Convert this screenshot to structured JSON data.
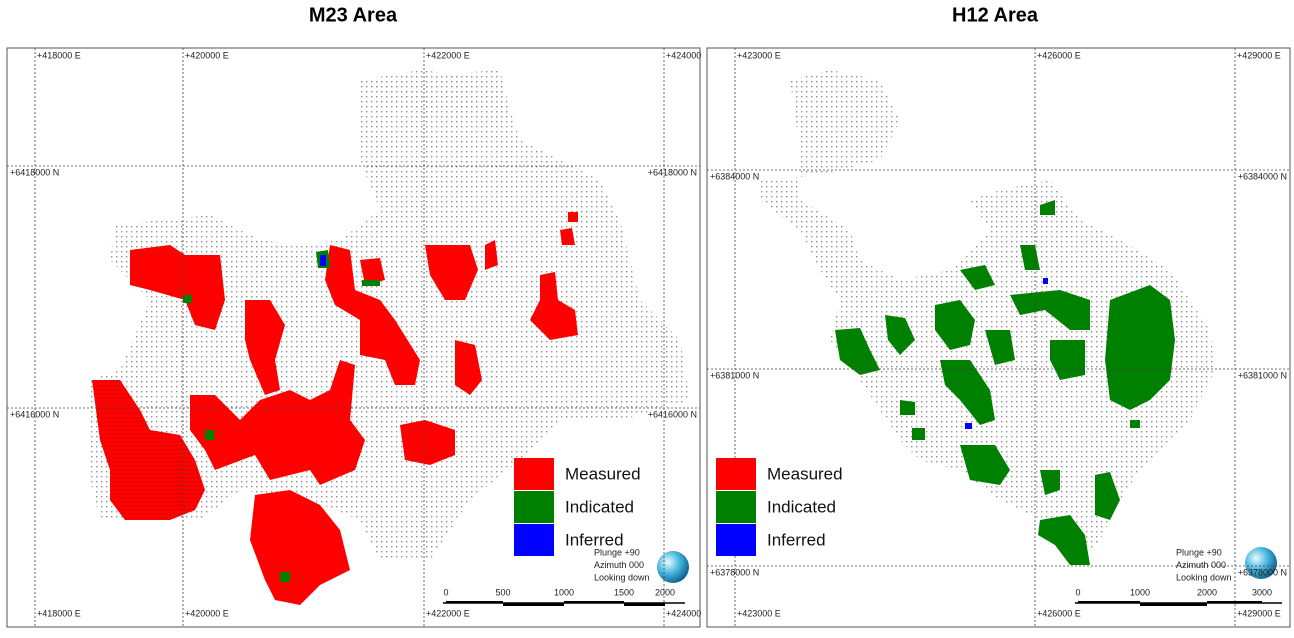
{
  "panels": [
    {
      "title": "M23 Area",
      "eastings": [
        "+418000 E",
        "+420000 E",
        "+422000 E",
        "+424000"
      ],
      "northings": [
        "+6418000 N",
        "+6416000 N"
      ],
      "scale_labels": [
        "0",
        "500",
        "1000",
        "1500",
        "2000"
      ],
      "view_notes": [
        "Plunge +90",
        "Azimuth 000",
        "Looking down"
      ],
      "legend": [
        {
          "label": "Measured",
          "color": "#ff0000"
        },
        {
          "label": "Indicated",
          "color": "#008000"
        },
        {
          "label": "Inferred",
          "color": "#0000ff"
        }
      ]
    },
    {
      "title": "H12 Area",
      "eastings": [
        "+423000 E",
        "+426000 E",
        "+429000 E"
      ],
      "northings": [
        "+6384000 N",
        "+6381000 N",
        "+6378000 N"
      ],
      "scale_labels": [
        "0",
        "1000",
        "2000",
        "3000"
      ],
      "view_notes": [
        "Plunge +90",
        "Azimuth 000",
        "Looking down"
      ],
      "legend": [
        {
          "label": "Measured",
          "color": "#ff0000"
        },
        {
          "label": "Indicated",
          "color": "#008000"
        },
        {
          "label": "Inferred",
          "color": "#0000ff"
        }
      ]
    }
  ]
}
